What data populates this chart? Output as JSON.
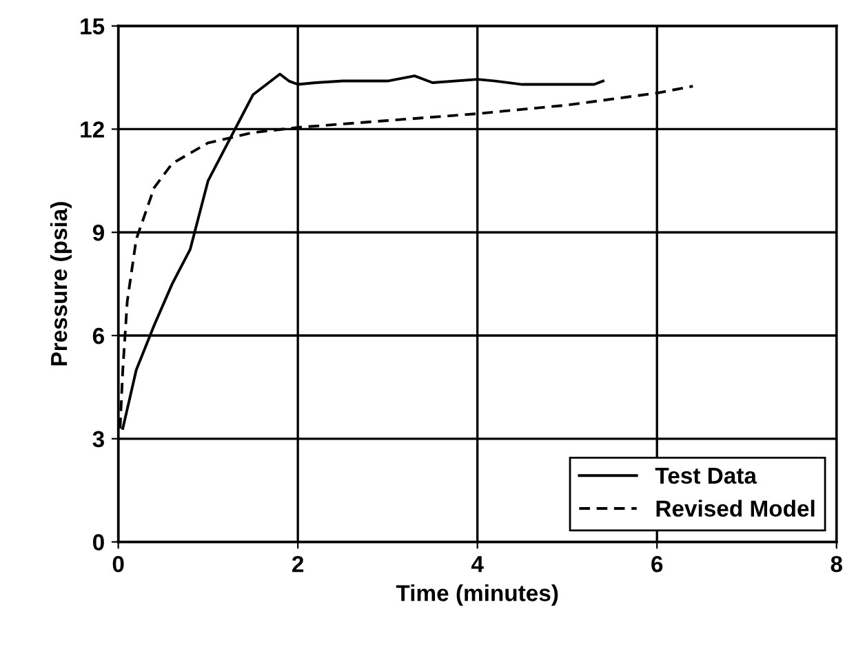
{
  "chart_data": {
    "type": "line",
    "xlabel": "Time (minutes)",
    "ylabel": "Pressure (psia)",
    "xlim": [
      0,
      8
    ],
    "xticks": [
      0,
      2,
      4,
      6,
      8
    ],
    "ylim": [
      0,
      15
    ],
    "yticks": [
      0,
      3,
      6,
      9,
      12,
      15
    ],
    "grid": true,
    "legend": "bottom right",
    "series": [
      {
        "name": "Test Data",
        "color": "#000000",
        "line_style": "solid",
        "x": [
          0.05,
          0.2,
          0.4,
          0.6,
          0.8,
          0.9,
          1.0,
          1.2,
          1.4,
          1.5,
          1.65,
          1.8,
          1.9,
          2.0,
          2.2,
          2.5,
          3.0,
          3.3,
          3.5,
          4.0,
          4.2,
          4.5,
          5.0,
          5.3,
          5.4
        ],
        "values": [
          3.3,
          5.0,
          6.3,
          7.5,
          8.5,
          9.5,
          10.5,
          11.5,
          12.5,
          13.0,
          13.3,
          13.6,
          13.4,
          13.3,
          13.35,
          13.4,
          13.4,
          13.55,
          13.35,
          13.45,
          13.4,
          13.3,
          13.3,
          13.3,
          13.4
        ]
      },
      {
        "name": "Revised Model",
        "color": "#000000",
        "line_style": "dashed",
        "x": [
          0.02,
          0.05,
          0.1,
          0.2,
          0.4,
          0.6,
          1.0,
          1.5,
          2.0,
          3.0,
          4.0,
          5.0,
          6.0,
          6.4
        ],
        "values": [
          3.3,
          5.0,
          7.0,
          8.8,
          10.3,
          11.0,
          11.6,
          11.9,
          12.05,
          12.25,
          12.45,
          12.7,
          13.05,
          13.25
        ]
      }
    ]
  }
}
